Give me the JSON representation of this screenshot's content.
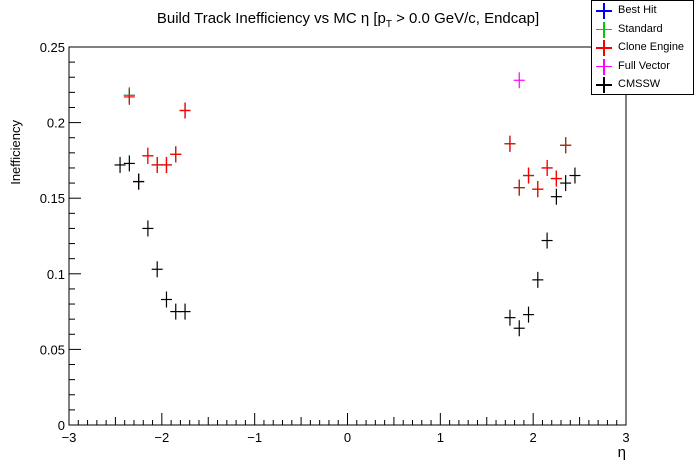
{
  "chart_data": {
    "type": "scatter",
    "title_main": "Build Track Inefficiency vs MC η [p",
    "title_sub": "T",
    "title_rest": " > 0.0 GeV/c, Endcap]",
    "xlabel": "η",
    "ylabel": "Inefficiency",
    "xlim": [
      -3,
      3
    ],
    "ylim": [
      0,
      0.25
    ],
    "grid": false,
    "legend_position": "top-right",
    "x_ticks": [
      "−3",
      "−2",
      "−1",
      "0",
      "1",
      "2",
      "3"
    ],
    "y_ticks": [
      "0",
      "0.05",
      "0.1",
      "0.15",
      "0.2",
      "0.25"
    ],
    "series": [
      {
        "name": "Best Hit",
        "color": "#0000ff",
        "x": [
          -2.35,
          -2.25,
          -2.15,
          -2.05,
          -1.95,
          -1.85,
          -1.75,
          1.75,
          1.85,
          1.95,
          2.05,
          2.15,
          2.25,
          2.35
        ],
        "y": [
          0.218,
          0.161,
          0.178,
          0.172,
          0.172,
          0.179,
          0.208,
          0.186,
          0.157,
          0.165,
          0.156,
          0.17,
          0.163,
          0.185
        ]
      },
      {
        "name": "Standard",
        "color": "#00cc00",
        "x": [
          -2.35,
          -2.25,
          -2.15,
          -2.05,
          -1.95,
          -1.85,
          -1.75,
          1.75,
          1.85,
          1.95,
          2.05,
          2.15,
          2.25,
          2.35
        ],
        "y": [
          0.218,
          0.161,
          0.178,
          0.172,
          0.172,
          0.179,
          0.208,
          0.186,
          0.157,
          0.165,
          0.156,
          0.17,
          0.163,
          0.185
        ]
      },
      {
        "name": "Clone Engine",
        "color": "#ff0000",
        "x": [
          -2.35,
          -2.25,
          -2.15,
          -2.05,
          -1.95,
          -1.85,
          -1.75,
          1.75,
          1.85,
          1.95,
          2.05,
          2.15,
          2.25,
          2.35
        ],
        "y": [
          0.217,
          0.161,
          0.178,
          0.172,
          0.172,
          0.179,
          0.208,
          0.186,
          0.157,
          0.165,
          0.156,
          0.17,
          0.163,
          0.185
        ]
      },
      {
        "name": "Full Vector",
        "color": "#ff00ff",
        "x": [
          1.85
        ],
        "y": [
          0.228
        ]
      },
      {
        "name": "CMSSW",
        "color": "#000000",
        "x": [
          -2.45,
          -2.35,
          -2.25,
          -2.15,
          -2.05,
          -1.95,
          -1.85,
          -1.75,
          1.75,
          1.85,
          1.95,
          2.05,
          2.15,
          2.25,
          2.35,
          2.45
        ],
        "y": [
          0.172,
          0.173,
          0.161,
          0.13,
          0.103,
          0.083,
          0.075,
          0.075,
          0.071,
          0.064,
          0.073,
          0.096,
          0.122,
          0.151,
          0.16,
          0.165
        ]
      }
    ]
  }
}
